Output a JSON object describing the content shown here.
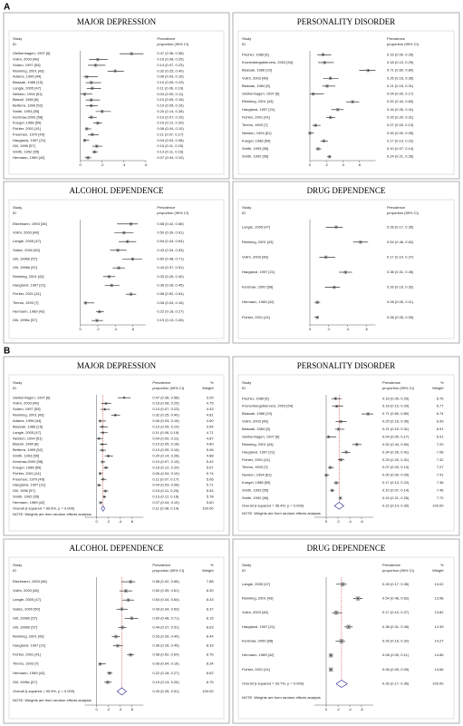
{
  "panel_labels": [
    "A",
    "B"
  ],
  "chart_data": [
    {
      "type": "forest",
      "title": "MAJOR DEPRESSION",
      "study_header": [
        "Study",
        "ID"
      ],
      "estimate_header": [
        "Prevalence",
        "proportion (95% CI)"
      ],
      "categories": [
        "Gielkenhagen, 1997 [6]",
        "Vollm, 2003 [48]",
        "Solaro, 1997 [53]",
        "Reinking, 2001 [43]",
        "Adams, 1996 [44]",
        "Biassak, 1986 [15]",
        "Langle, 2005 [47]",
        "Nelston, 1994 [51]",
        "Biasuli, 1984 [8]",
        "Belterra, 1999 [52]",
        "Smith, 1993 [55]",
        "Kershaw,2000 [58]",
        "Koegel, 1988 [59]",
        "Fichter, 2001 [41]",
        "Freeman, 1970 [49]",
        "Haugland, 1997 [21]",
        "Gill, 1996 [57]",
        "Smith, 1992 [55]",
        "Hermann, 1989 [42]"
      ],
      "values": [
        0.47,
        0.16,
        0.14,
        0.32,
        0.06,
        0.1,
        0.11,
        0.04,
        0.1,
        0.1,
        0.2,
        0.1,
        0.16,
        0.06,
        0.11,
        0.04,
        0.15,
        0.13,
        0.07
      ],
      "lower": [
        0.36,
        0.08,
        0.07,
        0.25,
        0.03,
        0.05,
        0.06,
        0.0,
        0.05,
        0.05,
        0.14,
        0.07,
        0.12,
        0.04,
        0.07,
        0.03,
        0.11,
        0.11,
        0.04
      ],
      "upper": [
        0.58,
        0.25,
        0.23,
        0.4,
        0.16,
        0.19,
        0.19,
        0.11,
        0.18,
        0.16,
        0.28,
        0.15,
        0.2,
        0.1,
        0.17,
        0.08,
        0.2,
        0.16,
        0.1
      ],
      "value_labels": [
        "0.47 (0.36, 0.58)",
        "0.16 (0.08, 0.25)",
        "0.14 (0.07, 0.23)",
        "0.32 (0.25, 0.40)",
        "0.06 (0.03, 0.16)",
        "0.10 (0.05, 0.19)",
        "0.11 (0.06, 0.19)",
        "0.04 (0.00, 0.11)",
        "0.10 (0.05, 0.18)",
        "0.10 (0.05, 0.16)",
        "0.20 (0.14, 0.28)",
        "0.10 (0.07, 0.15)",
        "0.16 (0.12, 0.20)",
        "0.06 (0.04, 0.10)",
        "0.11 (0.07, 0.17)",
        "0.04 (0.03, 0.08)",
        "0.15 (0.11, 0.20)",
        "0.13 (0.11, 0.16)",
        "0.07 (0.04, 0.10)"
      ],
      "xlim": [
        0,
        0.6
      ],
      "xticks": [
        0,
        {
          "value": 0.2,
          "label": ".2"
        },
        {
          "value": 0.4,
          "label": ".4"
        },
        {
          "value": 0.6,
          "label": ".6"
        }
      ]
    },
    {
      "type": "forest",
      "title": "PERSONALITY DISORDER",
      "study_header": [
        "Study",
        "ID"
      ],
      "estimate_header": [
        "Prevalence",
        "proportion (95% CI)"
      ],
      "categories": [
        "Fischer, 1986 [6]",
        "Kronenbergsbiervers, 2003 [54]",
        "Biassak, 1986 [10]",
        "Vollm, 2003 [48]",
        "Biassak, 1984 [8]",
        "Gielkenhagen, 1997 [6]",
        "Reinking, 2001 [43]",
        "Haugland, 1997 [21]",
        "Fichter, 2001 [41]",
        "Timms, 1993 [7]",
        "Newton, 1994 [61]",
        "Koegel, 1988 [59]",
        "Smith, 1993 [55]",
        "Smith, 1992 [56]"
      ],
      "values": [
        0.16,
        0.18,
        0.71,
        0.25,
        0.21,
        0.04,
        0.52,
        0.34,
        0.25,
        0.07,
        0.0,
        0.17,
        0.1,
        0.24
      ],
      "lower": [
        0.09,
        0.1,
        0.6,
        0.16,
        0.15,
        0.0,
        0.44,
        0.26,
        0.2,
        0.03,
        0.0,
        0.13,
        0.07,
        0.21
      ],
      "upper": [
        0.26,
        0.29,
        0.8,
        0.35,
        0.31,
        0.17,
        0.6,
        0.41,
        0.31,
        0.13,
        0.05,
        0.22,
        0.14,
        0.26
      ],
      "value_labels": [
        "0.16 (0.09, 0.26)",
        "0.18 (0.10, 0.29)",
        "0.71 (0.60, 0.80)",
        "0.25 (0.16, 0.35)",
        "0.21 (0.15, 0.31)",
        "0.04 (0.00, 0.17)",
        "0.52 (0.44, 0.60)",
        "0.34 (0.26, 0.41)",
        "0.25 (0.20, 0.31)",
        "0.07 (0.03, 0.13)",
        "0.00 (0.00, 0.05)",
        "0.17 (0.13, 0.22)",
        "0.10 (0.07, 0.14)",
        "0.24 (0.21, 0.26)"
      ],
      "xlim": [
        0,
        0.8
      ],
      "xticks": [
        0,
        {
          "value": 0.2,
          "label": ".2"
        },
        {
          "value": 0.4,
          "label": ".4"
        },
        {
          "value": 0.6,
          "label": ".6"
        }
      ]
    },
    {
      "type": "forest",
      "title": "ALCOHOL DEPENDENCE",
      "study_header": [
        "Study",
        "ID"
      ],
      "estimate_header": [
        "Prevalence",
        "proportion (95% CI)"
      ],
      "categories": [
        "Eikelmann, 1993 [46]",
        "Vollm, 2003 [48]",
        "Langle, 2005 [47]",
        "Salize, 2000 [50]",
        "Gill, 1996b [57]",
        "Gill, 1996b [57]",
        "Reinking, 2001 [43]",
        "Haugland, 1997 [21]",
        "Fichter, 2001 [41]",
        "Timms, 1993 [7]",
        "Hermann, 1989 [42]",
        "Gill, 1996c [57]"
      ],
      "values": [
        0.58,
        0.5,
        0.54,
        0.43,
        0.6,
        0.44,
        0.33,
        0.36,
        0.58,
        0.06,
        0.22,
        0.19
      ],
      "lower": [
        0.42,
        0.39,
        0.44,
        0.34,
        0.48,
        0.37,
        0.26,
        0.28,
        0.52,
        0.04,
        0.18,
        0.13
      ],
      "upper": [
        0.66,
        0.61,
        0.64,
        0.53,
        0.71,
        0.51,
        0.4,
        0.45,
        0.64,
        0.16,
        0.27,
        0.26
      ],
      "value_labels": [
        "0.58 (0.42, 0.66)",
        "0.50 (0.39, 0.61)",
        "0.54 (0.44, 0.64)",
        "0.43 (0.34, 0.53)",
        "0.60 (0.48, 0.71)",
        "0.44 (0.37, 0.51)",
        "0.33 (0.26, 0.40)",
        "0.36 (0.28, 0.45)",
        "0.58 (0.52, 0.64)",
        "0.06 (0.04, 0.16)",
        "0.22 (0.18, 0.27)",
        "0.19 (0.13, 0.26)"
      ],
      "xlim": [
        0,
        0.75
      ],
      "xticks": [
        0,
        {
          "value": 0.2,
          "label": ".2"
        },
        {
          "value": 0.4,
          "label": ".4"
        },
        {
          "value": 0.6,
          "label": ".6"
        }
      ]
    },
    {
      "type": "forest",
      "title": "DRUG DEPENDENCE",
      "study_header": [
        "Study",
        "ID"
      ],
      "estimate_header": [
        "Prevalence",
        "proportion (95% CI)"
      ],
      "categories": [
        "Langle, 2005 [47]",
        "Reinking, 2001 [43]",
        "Vollm, 2003 [48]",
        "Haugland, 1997 [21]",
        "Kershaw, 2000 [58]",
        "Hermann, 1989 [42]",
        "Fichter, 2001 [41]"
      ],
      "values": [
        0.28,
        0.54,
        0.17,
        0.38,
        0.26,
        0.08,
        0.08
      ],
      "lower": [
        0.17,
        0.46,
        0.1,
        0.31,
        0.16,
        0.05,
        0.05
      ],
      "upper": [
        0.35,
        0.62,
        0.27,
        0.45,
        0.32,
        0.11,
        0.09
      ],
      "value_labels": [
        "0.28 (0.17, 0.35)",
        "0.54 (0.46, 0.62)",
        "0.17 (0.10, 0.27)",
        "0.38 (0.31, 0.45)",
        "0.26 (0.16, 0.32)",
        "0.08 (0.05, 0.11)",
        "0.08 (0.05, 0.09)"
      ],
      "xlim": [
        0,
        0.7
      ],
      "xticks": [
        0,
        {
          "value": 0.2,
          "label": ".2"
        },
        {
          "value": 0.4,
          "label": ".4"
        },
        {
          "value": 0.6,
          "label": ".6"
        }
      ]
    },
    {
      "type": "forest",
      "title": "MAJOR DEPRESSION",
      "study_header": [
        "Study",
        "ID"
      ],
      "estimate_header": [
        "Prevalence",
        "proportion (95% CI)"
      ],
      "weight_header": [
        "%",
        "Weight"
      ],
      "categories": [
        "Gielkenhagen, 1997 [6]",
        "Vollm, 2003 [48]",
        "Solaro, 1997 [53]",
        "Reinking, 2001 [43]",
        "Adams, 1996 [44]",
        "Biassak, 1986 [15]",
        "Langle, 2005 [47]",
        "Nelston, 1994 [51]",
        "Biasuli, 1984 [8]",
        "Belterra, 1999 [52]",
        "Smith, 1993 [55]",
        "Kershaw,2000 [58]",
        "Koegel, 1988 [59]",
        "Fichter, 2001 [41]",
        "Freeman, 1970 [49]",
        "Haugland, 1997 [21]",
        "Gill, 1996 [57]",
        "Smith, 1992 [55]",
        "Hermann, 1989 [42]"
      ],
      "values": [
        0.47,
        0.16,
        0.14,
        0.32,
        0.06,
        0.1,
        0.11,
        0.04,
        0.1,
        0.1,
        0.2,
        0.1,
        0.16,
        0.06,
        0.11,
        0.04,
        0.15,
        0.13,
        0.07
      ],
      "lower": [
        0.36,
        0.08,
        0.07,
        0.25,
        0.03,
        0.05,
        0.06,
        0.0,
        0.05,
        0.05,
        0.14,
        0.07,
        0.12,
        0.04,
        0.07,
        0.03,
        0.11,
        0.11,
        0.04
      ],
      "upper": [
        0.58,
        0.25,
        0.23,
        0.4,
        0.16,
        0.19,
        0.19,
        0.11,
        0.18,
        0.16,
        0.28,
        0.15,
        0.2,
        0.1,
        0.17,
        0.08,
        0.2,
        0.16,
        0.1
      ],
      "value_labels": [
        "0.47 (0.36, 0.58)",
        "0.16 (0.08, 0.25)",
        "0.14 (0.07, 0.23)",
        "0.32 (0.25, 0.40)",
        "0.06 (0.03, 0.16)",
        "0.10 (0.05, 0.19)",
        "0.11 (0.06, 0.19)",
        "0.04 (0.00, 0.11)",
        "0.10 (0.05, 0.18)",
        "0.10 (0.05, 0.16)",
        "0.20 (0.14, 0.28)",
        "0.10 (0.07, 0.15)",
        "0.16 (0.12, 0.20)",
        "0.06 (0.04, 0.10)",
        "0.11 (0.07, 0.17)",
        "0.04 (0.03, 0.08)",
        "0.15 (0.11, 0.20)",
        "0.13 (0.11, 0.16)",
        "0.07 (0.04, 0.10)"
      ],
      "weights": [
        3.25,
        4.75,
        4.43,
        4.81,
        4.6,
        4.54,
        4.71,
        4.87,
        4.89,
        5.06,
        4.88,
        5.42,
        5.57,
        5.74,
        5.06,
        5.71,
        5.54,
        5.78,
        5.6
      ],
      "weight_labels": [
        "3.25",
        "4.75",
        "4.43",
        "4.81",
        "4.60",
        "4.54",
        "4.71",
        "4.87",
        "4.89",
        "5.06",
        "4.88",
        "5.42",
        "5.57",
        "5.74",
        "5.06",
        "5.71",
        "5.54",
        "5.78",
        "5.60"
      ],
      "overall": {
        "label": "Overall  (I-squared = 89.6%, p = 0.000)",
        "value": 0.11,
        "lower": 0.08,
        "upper": 0.14,
        "value_label": "0.11 (0.08, 0.14)",
        "weight": 100,
        "weight_label": "100.00"
      },
      "note": "NOTE: Weights are from random effects analysis",
      "xlim": [
        -0.2,
        0.8
      ],
      "xticks": [
        0,
        {
          "value": 0.2,
          "label": ".2"
        },
        {
          "value": 0.4,
          "label": ".4"
        },
        {
          "value": 0.6,
          "label": ".6"
        }
      ]
    },
    {
      "type": "forest",
      "title": "PERSONALITY DISORDER",
      "study_header": [
        "Study",
        "ID"
      ],
      "estimate_header": [
        "Prevalence",
        "proportion (95% CI)"
      ],
      "weight_header": [
        "%",
        "Weight"
      ],
      "categories": [
        "Fischer, 1986 [6]",
        "Kronenbergsbiervers, 2003 [54]",
        "Biassak, 1986 [10]",
        "Vollm, 2003 [48]",
        "Biassak, 1984 [8]",
        "Gielkenhagen, 1997 [6]",
        "Reinking, 2001 [43]",
        "Haugland, 1997 [21]",
        "Fichter, 2001 [41]",
        "Timms, 1993 [7]",
        "Newton, 1994 [61]",
        "Koegel, 1988 [59]",
        "Smith, 1993 [55]",
        "Smith, 1992 [56]"
      ],
      "values": [
        0.16,
        0.18,
        0.71,
        0.25,
        0.21,
        0.04,
        0.52,
        0.34,
        0.25,
        0.07,
        0.0,
        0.17,
        0.1,
        0.24
      ],
      "lower": [
        0.09,
        0.1,
        0.6,
        0.16,
        0.15,
        0.0,
        0.44,
        0.26,
        0.2,
        0.03,
        0.0,
        0.13,
        0.07,
        0.21
      ],
      "upper": [
        0.26,
        0.29,
        0.8,
        0.35,
        0.31,
        0.17,
        0.6,
        0.41,
        0.31,
        0.13,
        0.05,
        0.22,
        0.14,
        0.26
      ],
      "value_labels": [
        "0.16 (0.09, 0.26)",
        "0.18 (0.10, 0.29)",
        "0.71 (0.60, 0.80)",
        "0.25 (0.16, 0.35)",
        "0.21 (0.15, 0.31)",
        "0.04 (0.00, 0.17)",
        "0.52 (0.44, 0.60)",
        "0.34 (0.26, 0.41)",
        "0.25 (0.20, 0.31)",
        "0.07 (0.03, 0.13)",
        "0.00 (0.00, 0.05)",
        "0.17 (0.13, 0.22)",
        "0.10 (0.07, 0.14)",
        "0.24 (0.21, 0.26)"
      ],
      "weights": [
        6.76,
        6.77,
        6.74,
        6.99,
        6.91,
        6.91,
        7.2,
        7.08,
        7.42,
        7.27,
        7.41,
        7.36,
        7.46,
        7.72
      ],
      "weight_labels": [
        "6.76",
        "6.77",
        "6.74",
        "6.99",
        "6.91",
        "6.91",
        "7.20",
        "7.08",
        "7.42",
        "7.27",
        "7.41",
        "7.36",
        "7.46",
        "7.72"
      ],
      "overall": {
        "label": "Overall  (I-squared = 95.4%, p = 0.000)",
        "value": 0.22,
        "lower": 0.14,
        "upper": 0.3,
        "value_label": "0.22 (0.14, 0.30)",
        "weight": 100,
        "weight_label": "100.00"
      },
      "note": "NOTE: Weights are from random effects analysis",
      "xlim": [
        -0.2,
        0.8
      ],
      "xticks": [
        0,
        {
          "value": 0.2,
          "label": ".2"
        },
        {
          "value": 0.4,
          "label": ".4"
        },
        {
          "value": 0.6,
          "label": ".6"
        }
      ]
    },
    {
      "type": "forest",
      "title": "ALCOHOL DEPENDENCE",
      "study_header": [
        "Study",
        "ID"
      ],
      "estimate_header": [
        "Prevalence",
        "proportion (95% CI)"
      ],
      "weight_header": [
        "%",
        "Weight"
      ],
      "categories": [
        "Eikelmann, 1993 [46]",
        "Vollm, 2003 [48]",
        "Langle, 2005 [47]",
        "Salize, 2000 [50]",
        "Gill, 1996b [57]",
        "Gill, 1996b [57]",
        "Reinking, 2001 [43]",
        "Haugland, 1997 [21]",
        "Fichter, 2001 [41]",
        "Timms, 1993 [7]",
        "Hermann, 1989 [42]",
        "Gill, 1996c [57]"
      ],
      "values": [
        0.58,
        0.5,
        0.54,
        0.43,
        0.6,
        0.44,
        0.33,
        0.36,
        0.58,
        0.06,
        0.22,
        0.19
      ],
      "lower": [
        0.42,
        0.39,
        0.44,
        0.34,
        0.48,
        0.37,
        0.26,
        0.28,
        0.52,
        0.04,
        0.18,
        0.13
      ],
      "upper": [
        0.66,
        0.61,
        0.64,
        0.53,
        0.71,
        0.51,
        0.4,
        0.45,
        0.64,
        0.16,
        0.27,
        0.26
      ],
      "value_labels": [
        "0.58 (0.42, 0.66)",
        "0.50 (0.39, 0.61)",
        "0.54 (0.44, 0.64)",
        "0.43 (0.34, 0.53)",
        "0.60 (0.48, 0.71)",
        "0.44 (0.37, 0.51)",
        "0.33 (0.26, 0.40)",
        "0.36 (0.28, 0.45)",
        "0.58 (0.52, 0.64)",
        "0.06 (0.04, 0.16)",
        "0.22 (0.18, 0.27)",
        "0.19 (0.13, 0.26)"
      ],
      "weights": [
        7.88,
        8.3,
        8.43,
        8.37,
        8.15,
        8.63,
        8.44,
        8.33,
        8.76,
        8.34,
        8.62,
        8.75
      ],
      "weight_labels": [
        "7.88",
        "8.30",
        "8.43",
        "8.37",
        "8.15",
        "8.63",
        "8.44",
        "8.33",
        "8.76",
        "8.34",
        "8.62",
        "8.75"
      ],
      "overall": {
        "label": "Overall  (I-squared = 90.9%, p = 0.000)",
        "value": 0.43,
        "lower": 0.35,
        "upper": 0.51,
        "value_label": "0.43 (0.35, 0.51)",
        "weight": 100,
        "weight_label": "100.00"
      },
      "note": "NOTE: Weights are from random effects analysis",
      "xlim": [
        -0.2,
        0.8
      ],
      "xticks": [
        0,
        {
          "value": 0.2,
          "label": ".2"
        },
        {
          "value": 0.4,
          "label": ".4"
        },
        {
          "value": 0.6,
          "label": ".6"
        }
      ]
    },
    {
      "type": "forest",
      "title": "DRUG DEPENDENCE",
      "study_header": [
        "Study",
        "ID"
      ],
      "estimate_header": [
        "Prevalence",
        "proportion (95% CI)"
      ],
      "weight_header": [
        "%",
        "Weight"
      ],
      "categories": [
        "Langle, 2005 [47]",
        "Reinking, 2001 [43]",
        "Vollm, 2003 [48]",
        "Haugland, 1997 [21]",
        "Kershaw, 2000 [58]",
        "Hermann, 1989 [42]",
        "Fichter, 2001 [41]"
      ],
      "values": [
        0.28,
        0.54,
        0.17,
        0.38,
        0.26,
        0.08,
        0.08
      ],
      "lower": [
        0.17,
        0.46,
        0.1,
        0.31,
        0.16,
        0.05,
        0.05
      ],
      "upper": [
        0.35,
        0.62,
        0.27,
        0.45,
        0.32,
        0.11,
        0.09
      ],
      "value_labels": [
        "0.28 (0.17, 0.35)",
        "0.54 (0.46, 0.62)",
        "0.17 (0.10, 0.27)",
        "0.38 (0.31, 0.45)",
        "0.26 (0.16, 0.32)",
        "0.08 (0.05, 0.11)",
        "0.08 (0.05, 0.09)"
      ],
      "weights": [
        14.02,
        13.98,
        13.82,
        14.39,
        14.27,
        14.86,
        14.66
      ],
      "weight_labels": [
        "14.02",
        "13.98",
        "13.82",
        "14.39",
        "14.27",
        "14.86",
        "14.66"
      ],
      "overall": {
        "label": "Overall  (I-squared = 93.7%, p = 0.000)",
        "value": 0.26,
        "lower": 0.17,
        "upper": 0.36,
        "value_label": "0.26 (0.17, 0.36)",
        "weight": 100,
        "weight_label": "100.00"
      },
      "note": "NOTE: Weights are from random effects analysis",
      "xlim": [
        -0.2,
        0.8
      ],
      "xticks": [
        0,
        {
          "value": 0.2,
          "label": ".2"
        },
        {
          "value": 0.4,
          "label": ".4"
        },
        {
          "value": 0.6,
          "label": ".6"
        }
      ]
    }
  ]
}
